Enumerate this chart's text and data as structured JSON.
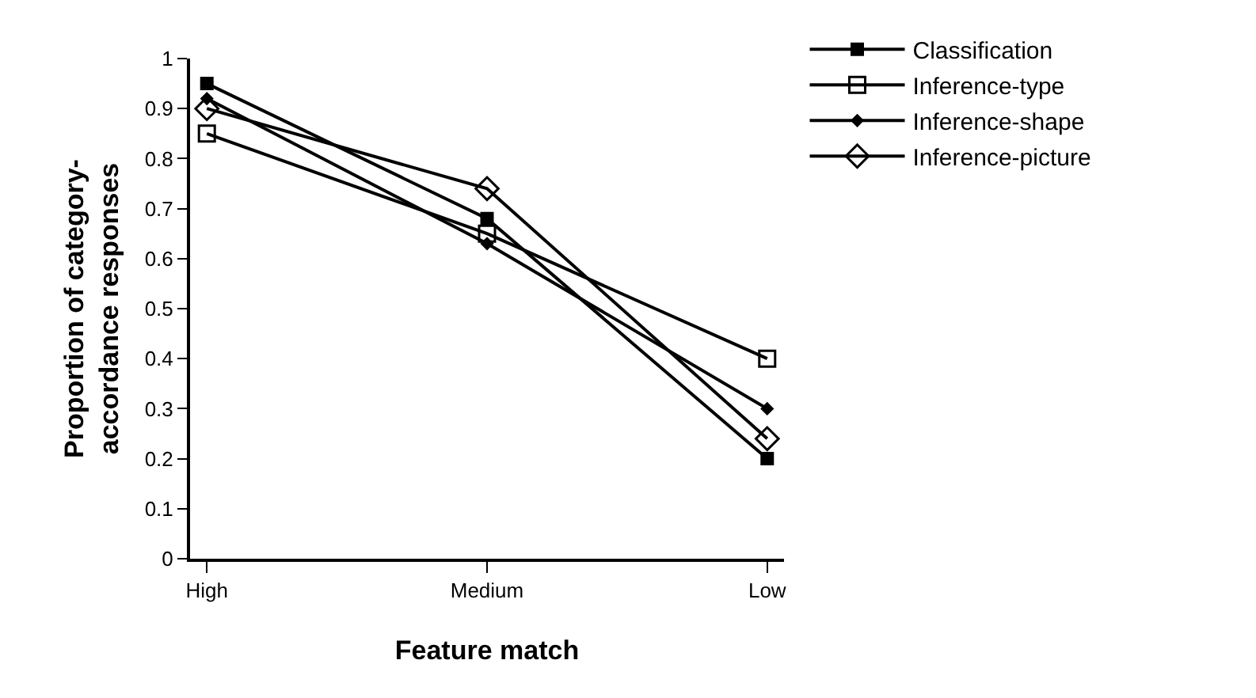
{
  "chart_data": {
    "type": "line",
    "xlabel": "Feature match",
    "ylabel": "Proportion of category-\naccordance responses",
    "categories": [
      "High",
      "Medium",
      "Low"
    ],
    "series": [
      {
        "name": "Classification",
        "color": "#000000",
        "marker": "square",
        "values": [
          0.95,
          0.68,
          0.2
        ]
      },
      {
        "name": "Inference-type",
        "color": "#000000",
        "marker": "square-open",
        "values": [
          0.85,
          0.65,
          0.4
        ]
      },
      {
        "name": "Inference-shape",
        "color": "#000000",
        "marker": "diamond",
        "values": [
          0.92,
          0.63,
          0.3
        ]
      },
      {
        "name": "Inference-picture",
        "color": "#000000",
        "marker": "diamond-open",
        "values": [
          0.9,
          0.74,
          0.24
        ]
      }
    ],
    "ylim": [
      0,
      1
    ],
    "yticks": [
      0,
      0.1,
      0.2,
      0.3,
      0.4,
      0.5,
      0.6,
      0.7,
      0.8,
      0.9,
      1
    ],
    "legend": "top right",
    "line_style": "solid"
  }
}
